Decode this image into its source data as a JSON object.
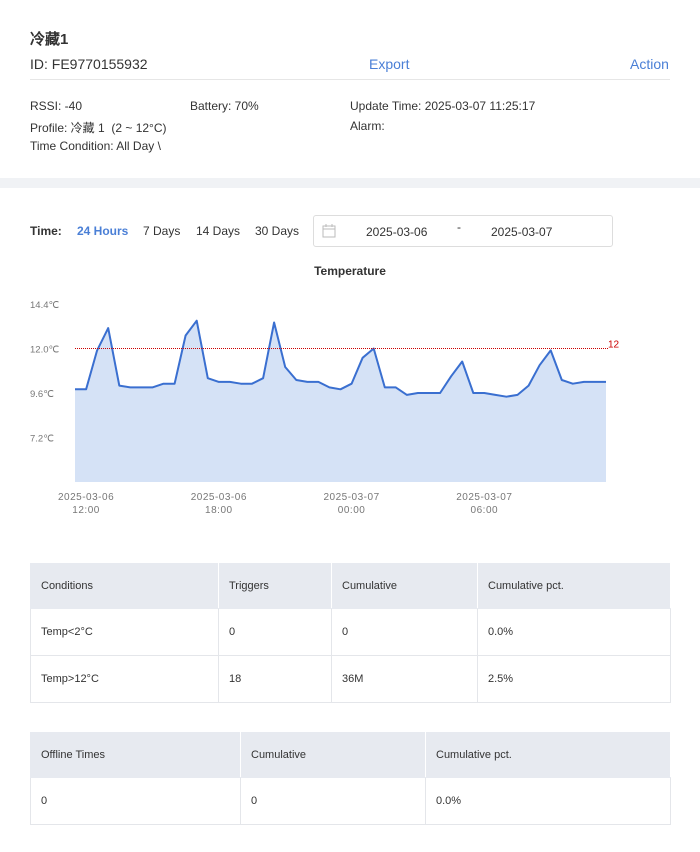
{
  "header": {
    "title": "冷藏1",
    "id": "ID: FE9770155932",
    "export": "Export",
    "action": "Action"
  },
  "info": {
    "rssi": "RSSI: -40",
    "battery": "Battery: 70%",
    "update_time": "Update Time: 2025-03-07 11:25:17",
    "profile": "Profile: 冷藏 1  (2 ~ 12°C)",
    "alarm": "Alarm:",
    "time_condition": "Time Condition: All Day \\"
  },
  "filters": {
    "label": "Time:",
    "options": [
      "24 Hours",
      "7 Days",
      "14 Days",
      "30 Days"
    ],
    "selected_index": 0,
    "start_date": "2025-03-06",
    "separator": "-",
    "end_date": "2025-03-07"
  },
  "chart": {
    "type": "line",
    "title": "Temperature",
    "color": "#3a6fd0",
    "fill": "#d5e2f6",
    "x": [
      "2025-03-06 11:30",
      "2025-03-06 12:00",
      "2025-03-06 12:30",
      "2025-03-06 13:00",
      "2025-03-06 13:30",
      "2025-03-06 14:00",
      "2025-03-06 14:30",
      "2025-03-06 15:00",
      "2025-03-06 15:30",
      "2025-03-06 16:00",
      "2025-03-06 16:30",
      "2025-03-06 17:00",
      "2025-03-06 17:30",
      "2025-03-06 18:00",
      "2025-03-06 18:30",
      "2025-03-06 19:00",
      "2025-03-06 19:30",
      "2025-03-06 20:00",
      "2025-03-06 20:30",
      "2025-03-06 21:00",
      "2025-03-06 21:30",
      "2025-03-06 22:00",
      "2025-03-06 22:30",
      "2025-03-06 23:00",
      "2025-03-06 23:30",
      "2025-03-07 00:00",
      "2025-03-07 00:30",
      "2025-03-07 01:00",
      "2025-03-07 01:30",
      "2025-03-07 02:00",
      "2025-03-07 02:30",
      "2025-03-07 03:00",
      "2025-03-07 03:30",
      "2025-03-07 04:00",
      "2025-03-07 04:30",
      "2025-03-07 05:00",
      "2025-03-07 05:30",
      "2025-03-07 06:00",
      "2025-03-07 06:30",
      "2025-03-07 07:00",
      "2025-03-07 07:30",
      "2025-03-07 08:00",
      "2025-03-07 08:30",
      "2025-03-07 09:00",
      "2025-03-07 09:30",
      "2025-03-07 10:00",
      "2025-03-07 10:30",
      "2025-03-07 11:00",
      "2025-03-07 11:30"
    ],
    "values": [
      9.8,
      9.8,
      11.9,
      13.1,
      10.0,
      9.9,
      9.9,
      9.9,
      10.1,
      10.1,
      12.7,
      13.5,
      10.4,
      10.2,
      10.2,
      10.1,
      10.1,
      10.4,
      13.4,
      11.0,
      10.3,
      10.2,
      10.2,
      9.9,
      9.8,
      10.1,
      11.5,
      12.0,
      9.9,
      9.9,
      9.5,
      9.6,
      9.6,
      9.6,
      10.5,
      11.3,
      9.6,
      9.6,
      9.5,
      9.4,
      9.5,
      10.0,
      11.1,
      11.9,
      10.3,
      10.1,
      10.2,
      10.2,
      10.2
    ],
    "xlim": [
      "2025-03-06 11:30",
      "2025-03-07 11:30"
    ],
    "xticks": [
      "2025-03-06 12:00",
      "2025-03-06 18:00",
      "2025-03-07 00:00",
      "2025-03-07 06:00"
    ],
    "ylim": [
      4.8,
      14.4
    ],
    "yticks": [
      {
        "value": 14.4,
        "label": "14.4℃"
      },
      {
        "value": 12.0,
        "label": "12.0℃"
      },
      {
        "value": 9.6,
        "label": "9.6℃"
      },
      {
        "value": 7.2,
        "label": "7.2℃"
      }
    ],
    "threshold": 12,
    "threshold_color": "#cc0000"
  },
  "conditions_table": {
    "headers": [
      "Conditions",
      "Triggers",
      "Cumulative",
      "Cumulative pct."
    ],
    "rows": [
      [
        "Temp<2°C",
        "0",
        "0",
        "0.0%"
      ],
      [
        "Temp>12°C",
        "18",
        "36M",
        "2.5%"
      ]
    ]
  },
  "offline_table": {
    "headers": [
      "Offline Times",
      "Cumulative",
      "Cumulative pct."
    ],
    "rows": [
      [
        "0",
        "0",
        "0.0%"
      ]
    ]
  }
}
